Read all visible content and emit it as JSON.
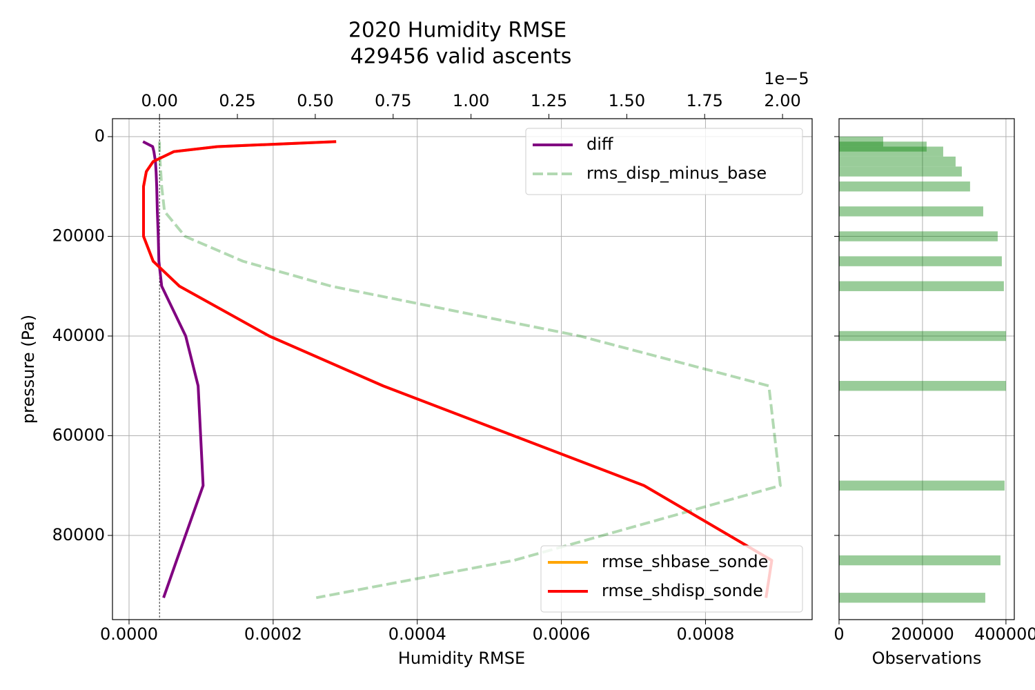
{
  "chart_data": [
    {
      "type": "line",
      "title": "2020 Humidity RMSE",
      "subtitle": "429456 valid ascents",
      "xlabel": "Humidity RMSE",
      "ylabel": "pressure (Pa)",
      "x2_offset_label": "1e−5",
      "y": [
        1000,
        2000,
        3000,
        5000,
        7000,
        10000,
        15000,
        20000,
        25000,
        30000,
        40000,
        50000,
        70000,
        85000,
        92500
      ],
      "xlim": [
        -2.3e-05,
        0.000948
      ],
      "xticks": [
        {
          "value": 0,
          "label": "0.0000"
        },
        {
          "value": 0.0002,
          "label": "0.0002"
        },
        {
          "value": 0.0004,
          "label": "0.0004"
        },
        {
          "value": 0.0006,
          "label": "0.0006"
        },
        {
          "value": 0.0008,
          "label": "0.0008"
        }
      ],
      "x2lim": [
        -0.151,
        2.095
      ],
      "x2ticks": [
        {
          "value": 0,
          "label": "0.00"
        },
        0.25,
        {
          "value": 0.5,
          "label": "0.50"
        },
        0.75,
        {
          "value": 1,
          "label": "1.00"
        },
        1.25,
        {
          "value": 1.5,
          "label": "1.50"
        },
        1.75,
        {
          "value": 2,
          "label": "2.00"
        }
      ],
      "ylim": [
        96890,
        -3600
      ],
      "yticks": [
        0,
        20000,
        40000,
        60000,
        80000
      ],
      "grid": true,
      "series": [
        {
          "name": "diff",
          "color": "#800080",
          "axis": "x2",
          "legend": "upper right",
          "linestyle": "solid",
          "alpha": 1,
          "values": [
            -0.053,
            -0.022,
            -0.018,
            -0.013,
            -0.011,
            -0.009,
            -0.007,
            -0.004,
            -0.002,
            0.007,
            0.084,
            0.124,
            0.14,
            0.055,
            0.013
          ]
        },
        {
          "name": "rms_disp_minus_base",
          "color": "#008000",
          "axis": "x2",
          "legend": "upper right",
          "linestyle": "dashed",
          "alpha": 0.3,
          "values": [
            0,
            0,
            0,
            0.002,
            0.004,
            0.007,
            0.016,
            0.082,
            0.268,
            0.551,
            1.349,
            1.956,
            1.993,
            1.138,
            0.503
          ]
        },
        {
          "name": "rmse_shbase_sonde",
          "color": "#ffa500",
          "axis": "x",
          "legend": "lower right",
          "linestyle": "solid",
          "alpha": 1,
          "values": [
            0.0002874,
            0.0001226,
            6.23e-05,
            3.35e-05,
            2.4e-05,
            2.01e-05,
            2.01e-05,
            2.01e-05,
            3.35e-05,
            6.99e-05,
            0.0001945,
            0.0003526,
            0.0007147,
            0.000892,
            0.000884
          ]
        },
        {
          "name": "rmse_shdisp_sonde",
          "color": "#ff0000",
          "axis": "x",
          "legend": "lower right",
          "linestyle": "solid",
          "alpha": 1,
          "values": [
            0.0002874,
            0.0001226,
            6.23e-05,
            3.35e-05,
            2.4e-05,
            2.01e-05,
            2.01e-05,
            2.01e-05,
            3.35e-05,
            6.99e-05,
            0.0001945,
            0.0003526,
            0.0007147,
            0.000892,
            0.000884
          ]
        }
      ]
    },
    {
      "type": "barh",
      "xlabel": "Observations",
      "y": [
        1000,
        2000,
        3000,
        5000,
        7000,
        10000,
        15000,
        20000,
        25000,
        30000,
        40000,
        50000,
        70000,
        85000,
        92500
      ],
      "values": [
        105800,
        209900,
        249600,
        279300,
        294200,
        314000,
        345500,
        380200,
        390100,
        395000,
        400000,
        400000,
        396700,
        386800,
        350400
      ],
      "color": "#008000",
      "alpha": 0.4,
      "xlim": [
        0,
        420000
      ],
      "xticks": [
        0,
        200000,
        400000
      ],
      "ylim": [
        96890,
        -3600
      ],
      "yticks": [
        0,
        20000,
        40000,
        60000,
        80000
      ],
      "grid": true
    }
  ]
}
